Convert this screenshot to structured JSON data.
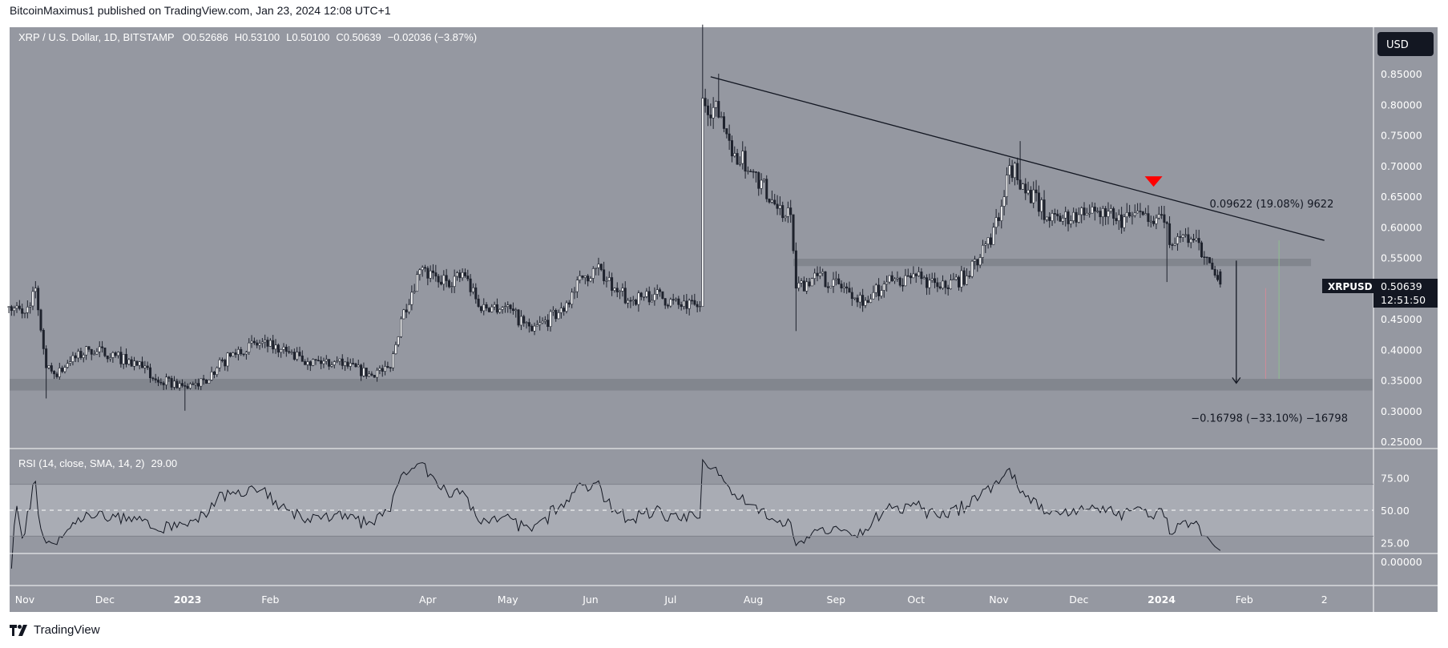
{
  "header": {
    "published": "BitcoinMaximus1 published on TradingView.com, Jan 23, 2024 12:08 UTC+1"
  },
  "legend": {
    "symbol": "XRP / U.S. Dollar, 1D, BITSTAMP",
    "open_label": "O",
    "open": "0.52686",
    "high_label": "H",
    "high": "0.53100",
    "low_label": "L",
    "low": "0.50100",
    "close_label": "C",
    "close": "0.50639",
    "change": "−0.02036 (−3.87%)"
  },
  "currency_button": "USD",
  "last_price": {
    "symbol": "XRPUSD",
    "price": "0.50639",
    "countdown": "12:51:50",
    "value": 0.50639
  },
  "rsi_legend": {
    "label": "RSI (14, close, SMA, 14, 2)",
    "value": "29.00"
  },
  "footer": {
    "brand": "TradingView"
  },
  "colors": {
    "background": "#9598a1",
    "up": "#ffffff",
    "down": "#1e222d",
    "marker": "#ff0000",
    "band": "#7f828b"
  },
  "chart_data": {
    "type": "candlestick",
    "price_axis": {
      "ylim": [
        0.25,
        0.88
      ],
      "ticks": [
        "0.85000",
        "0.80000",
        "0.75000",
        "0.70000",
        "0.65000",
        "0.60000",
        "0.55000",
        "0.45000",
        "0.40000",
        "0.35000",
        "0.30000",
        "0.25000"
      ],
      "tick_values": [
        0.85,
        0.8,
        0.75,
        0.7,
        0.65,
        0.6,
        0.55,
        0.45,
        0.4,
        0.35,
        0.3,
        0.25
      ]
    },
    "rsi_axis": {
      "ticks": [
        "75.00",
        "50.00",
        "25.00"
      ],
      "tick_values": [
        75,
        50,
        25
      ],
      "band": [
        30,
        70
      ],
      "midline": 50
    },
    "empty_pane_axis": {
      "tick": "0.00000"
    },
    "time_axis": [
      {
        "label": "Nov",
        "date": "2022-11-01",
        "bold": false
      },
      {
        "label": "Dec",
        "date": "2022-12-01",
        "bold": false
      },
      {
        "label": "2023",
        "date": "2023-01-01",
        "bold": true
      },
      {
        "label": "Feb",
        "date": "2023-02-01",
        "bold": false
      },
      {
        "label": "Apr",
        "date": "2023-04-01",
        "bold": false
      },
      {
        "label": "May",
        "date": "2023-05-01",
        "bold": false
      },
      {
        "label": "Jun",
        "date": "2023-06-01",
        "bold": false
      },
      {
        "label": "Jul",
        "date": "2023-07-01",
        "bold": false
      },
      {
        "label": "Aug",
        "date": "2023-08-01",
        "bold": false
      },
      {
        "label": "Sep",
        "date": "2023-09-01",
        "bold": false
      },
      {
        "label": "Oct",
        "date": "2023-10-01",
        "bold": false
      },
      {
        "label": "Nov",
        "date": "2023-11-01",
        "bold": false
      },
      {
        "label": "Dec",
        "date": "2023-12-01",
        "bold": false
      },
      {
        "label": "2024",
        "date": "2024-01-01",
        "bold": true
      },
      {
        "label": "Feb",
        "date": "2024-02-01",
        "bold": false
      },
      {
        "label": "2",
        "date": "2024-03-02",
        "bold": false
      }
    ],
    "close_path": [
      [
        "2022-10-26",
        0.47
      ],
      [
        "2022-11-01",
        0.46
      ],
      [
        "2022-11-05",
        0.5
      ],
      [
        "2022-11-09",
        0.37
      ],
      [
        "2022-11-12",
        0.36
      ],
      [
        "2022-11-18",
        0.38
      ],
      [
        "2022-11-25",
        0.4
      ],
      [
        "2022-12-05",
        0.39
      ],
      [
        "2022-12-15",
        0.37
      ],
      [
        "2022-12-20",
        0.35
      ],
      [
        "2022-12-31",
        0.34
      ],
      [
        "2023-01-05",
        0.34
      ],
      [
        "2023-01-12",
        0.37
      ],
      [
        "2023-01-20",
        0.4
      ],
      [
        "2023-01-28",
        0.41
      ],
      [
        "2023-02-05",
        0.4
      ],
      [
        "2023-02-15",
        0.38
      ],
      [
        "2023-02-25",
        0.38
      ],
      [
        "2023-03-10",
        0.36
      ],
      [
        "2023-03-18",
        0.37
      ],
      [
        "2023-03-22",
        0.45
      ],
      [
        "2023-03-29",
        0.53
      ],
      [
        "2023-04-05",
        0.51
      ],
      [
        "2023-04-15",
        0.52
      ],
      [
        "2023-04-20",
        0.47
      ],
      [
        "2023-04-30",
        0.47
      ],
      [
        "2023-05-10",
        0.43
      ],
      [
        "2023-05-20",
        0.46
      ],
      [
        "2023-05-30",
        0.52
      ],
      [
        "2023-06-05",
        0.53
      ],
      [
        "2023-06-10",
        0.5
      ],
      [
        "2023-06-15",
        0.48
      ],
      [
        "2023-06-25",
        0.49
      ],
      [
        "2023-07-05",
        0.47
      ],
      [
        "2023-07-12",
        0.47
      ],
      [
        "2023-07-13",
        0.81
      ],
      [
        "2023-07-20",
        0.78
      ],
      [
        "2023-07-25",
        0.72
      ],
      [
        "2023-08-01",
        0.69
      ],
      [
        "2023-08-10",
        0.63
      ],
      [
        "2023-08-15",
        0.62
      ],
      [
        "2023-08-17",
        0.5
      ],
      [
        "2023-08-25",
        0.52
      ],
      [
        "2023-09-05",
        0.5
      ],
      [
        "2023-09-12",
        0.48
      ],
      [
        "2023-09-20",
        0.51
      ],
      [
        "2023-10-01",
        0.52
      ],
      [
        "2023-10-10",
        0.5
      ],
      [
        "2023-10-20",
        0.52
      ],
      [
        "2023-10-25",
        0.55
      ],
      [
        "2023-11-01",
        0.61
      ],
      [
        "2023-11-05",
        0.7
      ],
      [
        "2023-11-12",
        0.66
      ],
      [
        "2023-11-20",
        0.61
      ],
      [
        "2023-12-01",
        0.62
      ],
      [
        "2023-12-10",
        0.63
      ],
      [
        "2023-12-15",
        0.61
      ],
      [
        "2023-12-25",
        0.62
      ],
      [
        "2024-01-01",
        0.62
      ],
      [
        "2024-01-05",
        0.57
      ],
      [
        "2024-01-12",
        0.58
      ],
      [
        "2024-01-18",
        0.55
      ],
      [
        "2024-01-23",
        0.50639
      ]
    ],
    "wick_extremes": [
      {
        "date": "2022-11-09",
        "low": 0.32
      },
      {
        "date": "2022-12-31",
        "low": 0.3
      },
      {
        "date": "2023-07-13",
        "high": 0.93
      },
      {
        "date": "2023-07-19",
        "high": 0.85
      },
      {
        "date": "2023-08-17",
        "low": 0.43
      },
      {
        "date": "2023-11-09",
        "high": 0.74
      },
      {
        "date": "2024-01-03",
        "low": 0.51
      }
    ],
    "trendline": {
      "from": [
        "2023-07-16",
        0.845
      ],
      "to": [
        "2024-03-02",
        0.578
      ]
    },
    "bands": [
      {
        "from": "2023-08-16",
        "to": "2024-02-26",
        "low": 0.536,
        "high": 0.548
      },
      {
        "from": "2022-10-26",
        "to": "2024-03-20",
        "low": 0.333,
        "high": 0.352
      }
    ],
    "marker": {
      "type": "down-triangle",
      "date": "2023-12-29",
      "price": 0.672
    },
    "arrow": {
      "date": "2024-01-29",
      "from": 0.545,
      "to": 0.345
    },
    "thin_lines": [
      {
        "date": "2024-02-14",
        "from": 0.578,
        "to": 0.352,
        "color": "#8fbf8f"
      },
      {
        "date": "2024-02-09",
        "from": 0.5,
        "to": 0.352,
        "color": "#d08a98"
      }
    ],
    "measurements": [
      {
        "text": "0.09622 (19.08%) 9622",
        "date": "2024-01-19",
        "price": 0.632
      },
      {
        "text": "−0.16798 (−33.10%) −16798",
        "date": "2024-01-12",
        "price": 0.282
      }
    ]
  }
}
